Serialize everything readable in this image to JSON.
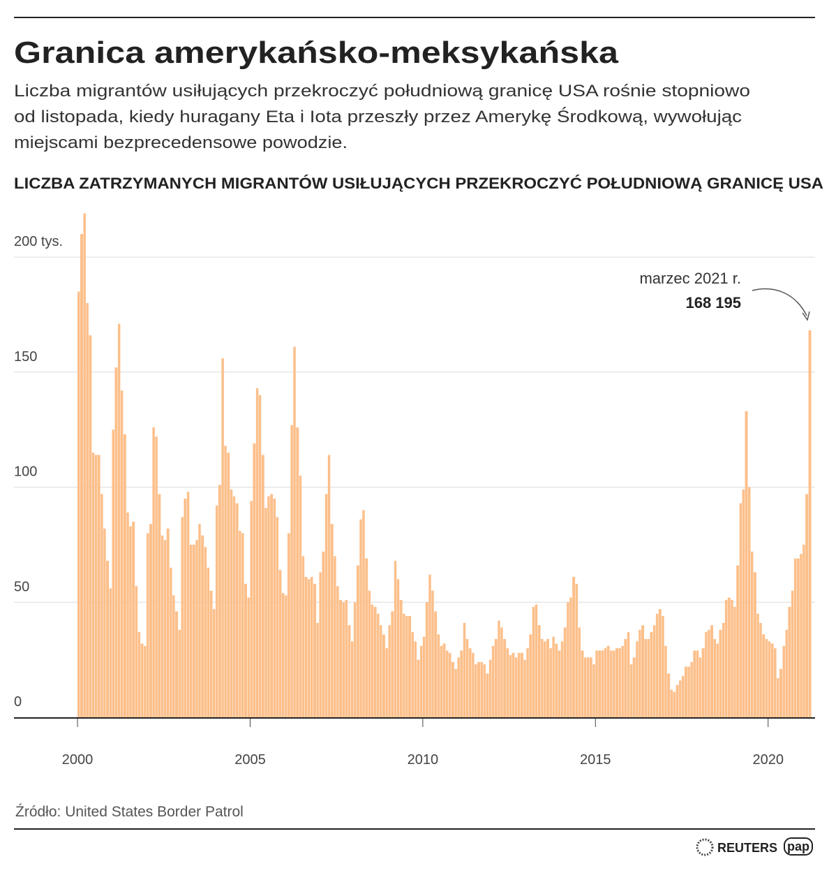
{
  "header": {
    "title": "Granica amerykańsko-meksykańska",
    "subtitle": [
      "Liczba migrantów usiłujących przekroczyć południową granicę USA rośnie stopniowo",
      "od listopada, kiedy huragany Eta i Iota przeszły przez Amerykę Środkową, wywołując",
      "miejscami bezprecedensowe powodzie."
    ]
  },
  "chart_data": {
    "type": "bar",
    "title": "LICZBA ZATRZYMANYCH MIGRANTÓW USIŁUJĄCYCH PRZEKROCZYĆ POŁUDNIOWĄ GRANICĘ USA",
    "color": "#fcbf8a",
    "grid": true,
    "xlim": [
      1998.16,
      2021.36
    ],
    "xticks": [
      2000,
      2005,
      2010,
      2015,
      2020
    ],
    "ylim": [
      0,
      224
    ],
    "yticks": [
      0,
      50,
      100,
      150,
      {
        "value": 200,
        "label": "200 tys."
      }
    ],
    "annotation": {
      "text": "marzec 2021 r.",
      "value_label": "168 195"
    },
    "x": [
      2000,
      2000.08,
      2000.17,
      2000.25,
      2000.33,
      2000.42,
      2000.5,
      2000.58,
      2000.67,
      2000.75,
      2000.83,
      2000.92,
      2001,
      2001.08,
      2001.17,
      2001.25,
      2001.33,
      2001.42,
      2001.5,
      2001.58,
      2001.67,
      2001.75,
      2001.83,
      2001.92,
      2002,
      2002.08,
      2002.17,
      2002.25,
      2002.33,
      2002.42,
      2002.5,
      2002.58,
      2002.67,
      2002.75,
      2002.83,
      2002.92,
      2003,
      2003.08,
      2003.17,
      2003.25,
      2003.33,
      2003.42,
      2003.5,
      2003.58,
      2003.67,
      2003.75,
      2003.83,
      2003.92,
      2004,
      2004.08,
      2004.17,
      2004.25,
      2004.33,
      2004.42,
      2004.5,
      2004.58,
      2004.67,
      2004.75,
      2004.83,
      2004.92,
      2005,
      2005.08,
      2005.17,
      2005.25,
      2005.33,
      2005.42,
      2005.5,
      2005.58,
      2005.67,
      2005.75,
      2005.83,
      2005.92,
      2006,
      2006.08,
      2006.17,
      2006.25,
      2006.33,
      2006.42,
      2006.5,
      2006.58,
      2006.67,
      2006.75,
      2006.83,
      2006.92,
      2007,
      2007.08,
      2007.17,
      2007.25,
      2007.33,
      2007.42,
      2007.5,
      2007.58,
      2007.67,
      2007.75,
      2007.83,
      2007.92,
      2008,
      2008.08,
      2008.17,
      2008.25,
      2008.33,
      2008.42,
      2008.5,
      2008.58,
      2008.67,
      2008.75,
      2008.83,
      2008.92,
      2009,
      2009.08,
      2009.17,
      2009.25,
      2009.33,
      2009.42,
      2009.5,
      2009.58,
      2009.67,
      2009.75,
      2009.83,
      2009.92,
      2010,
      2010.08,
      2010.17,
      2010.25,
      2010.33,
      2010.42,
      2010.5,
      2010.58,
      2010.67,
      2010.75,
      2010.83,
      2010.92,
      2011,
      2011.08,
      2011.17,
      2011.25,
      2011.33,
      2011.42,
      2011.5,
      2011.58,
      2011.67,
      2011.75,
      2011.83,
      2011.92,
      2012,
      2012.08,
      2012.17,
      2012.25,
      2012.33,
      2012.42,
      2012.5,
      2012.58,
      2012.67,
      2012.75,
      2012.83,
      2012.92,
      2013,
      2013.08,
      2013.17,
      2013.25,
      2013.33,
      2013.42,
      2013.5,
      2013.58,
      2013.67,
      2013.75,
      2013.83,
      2013.92,
      2014,
      2014.08,
      2014.17,
      2014.25,
      2014.33,
      2014.42,
      2014.5,
      2014.58,
      2014.67,
      2014.75,
      2014.83,
      2014.92,
      2015,
      2015.08,
      2015.17,
      2015.25,
      2015.33,
      2015.42,
      2015.5,
      2015.58,
      2015.67,
      2015.75,
      2015.83,
      2015.92,
      2016,
      2016.08,
      2016.17,
      2016.25,
      2016.33,
      2016.42,
      2016.5,
      2016.58,
      2016.67,
      2016.75,
      2016.83,
      2016.92,
      2017,
      2017.08,
      2017.17,
      2017.25,
      2017.33,
      2017.42,
      2017.5,
      2017.58,
      2017.67,
      2017.75,
      2017.83,
      2017.92,
      2018,
      2018.08,
      2018.17,
      2018.25,
      2018.33,
      2018.42,
      2018.5,
      2018.58,
      2018.67,
      2018.75,
      2018.83,
      2018.92,
      2019,
      2019.08,
      2019.17,
      2019.25,
      2019.33,
      2019.42,
      2019.5,
      2019.58,
      2019.67,
      2019.75,
      2019.83,
      2019.92,
      2020,
      2020.08,
      2020.17,
      2020.25,
      2020.33,
      2020.42,
      2020.5,
      2020.58,
      2020.67,
      2020.75,
      2020.83,
      2020.92,
      2021,
      2021.08,
      2021.17
    ],
    "values": [
      185,
      210,
      219,
      180,
      166,
      115,
      114,
      114,
      97,
      82,
      68,
      56,
      125,
      152,
      171,
      142,
      123,
      89,
      83,
      85,
      57,
      37,
      32,
      31,
      80,
      84,
      126,
      122,
      97,
      79,
      77,
      82,
      65,
      53,
      46,
      38,
      87,
      95,
      98,
      75,
      75,
      77,
      84,
      79,
      74,
      65,
      55,
      47,
      92,
      101,
      156,
      118,
      115,
      99,
      96,
      93,
      81,
      80,
      58,
      52,
      94,
      119,
      143,
      140,
      114,
      91,
      96,
      97,
      95,
      87,
      64,
      54,
      53,
      80,
      127,
      161,
      126,
      105,
      70,
      61,
      60,
      61,
      58,
      41,
      63,
      72,
      97,
      114,
      84,
      70,
      57,
      51,
      50,
      51,
      40,
      33,
      50,
      66,
      86,
      90,
      69,
      55,
      49,
      48,
      45,
      40,
      36,
      30,
      40,
      46,
      68,
      60,
      51,
      45,
      44,
      44,
      37,
      33,
      25,
      31,
      35,
      50,
      62,
      55,
      46,
      36,
      31,
      32,
      29,
      28,
      24,
      21,
      26,
      29,
      41,
      34,
      30,
      28,
      23,
      24,
      24,
      23,
      19,
      25,
      31,
      34,
      42,
      39,
      34,
      30,
      27,
      28,
      26,
      28,
      28,
      25,
      30,
      36,
      48,
      49,
      40,
      34,
      33,
      34,
      30,
      35,
      32,
      29,
      33,
      39,
      50,
      52,
      61,
      58,
      39,
      29,
      26,
      26,
      26,
      23,
      29,
      29,
      29,
      30,
      31,
      29,
      29,
      30,
      30,
      31,
      34,
      37,
      23,
      26,
      33,
      38,
      40,
      34,
      34,
      37,
      40,
      45,
      47,
      44,
      31,
      19,
      12,
      11,
      14,
      16,
      18,
      22,
      22,
      24,
      29,
      29,
      26,
      30,
      37,
      38,
      40,
      34,
      32,
      38,
      41,
      51,
      52,
      51,
      48,
      66,
      93,
      99,
      133,
      100,
      72,
      63,
      45,
      41,
      36,
      34,
      33,
      32,
      30,
      17,
      21,
      31,
      38,
      48,
      55,
      69,
      69,
      71,
      75,
      97,
      168.195
    ]
  },
  "footer": {
    "source": "Źródło: United States Border Patrol",
    "logos": [
      "REUTERS",
      "pap"
    ]
  }
}
